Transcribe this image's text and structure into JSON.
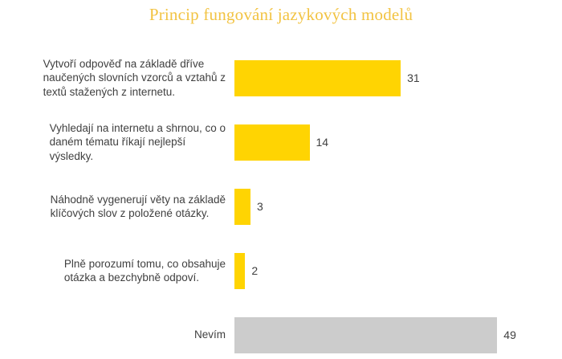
{
  "chart_data": {
    "type": "bar",
    "orientation": "horizontal",
    "title": "Princip fungování jazykových modelů",
    "title_color": "#F2C342",
    "categories": [
      "Vytvoří odpověď na základě dříve naučených slovních vzorců a vztahů z textů stažených z internetu.",
      "Vyhledají na internetu a shrnou, co o daném tématu říkají nejlepší výsledky.",
      "Náhodně vygenerují věty na základě klíčových slov z položené otázky.",
      "Plně porozumí tomu, co obsahuje otázka a bezchybně odpoví.",
      "Nevím"
    ],
    "category_line_breaks": [
      [
        "Vytvoří odpověď na základě dříve",
        "naučených slovních vzorců a vztahů z",
        "textů stažených z internetu."
      ],
      [
        "Vyhledají na internetu a shrnou, co o",
        "daném tématu říkají nejlepší",
        "výsledky."
      ],
      [
        "Náhodně vygenerují věty na základě",
        "klíčových slov z položené otázky."
      ],
      [
        "Plně porozumí tomu, co obsahuje",
        "otázka a bezchybně odpoví."
      ],
      [
        "Nevím"
      ]
    ],
    "values": [
      31,
      14,
      3,
      2,
      49
    ],
    "bar_colors": [
      "#FFD402",
      "#FFD402",
      "#FFD402",
      "#FFD402",
      "#CCCCCC"
    ],
    "text_color": "#404040",
    "xlim": [
      0,
      49
    ],
    "grid": false,
    "legend": false,
    "data_labels_position": "outside-end"
  }
}
